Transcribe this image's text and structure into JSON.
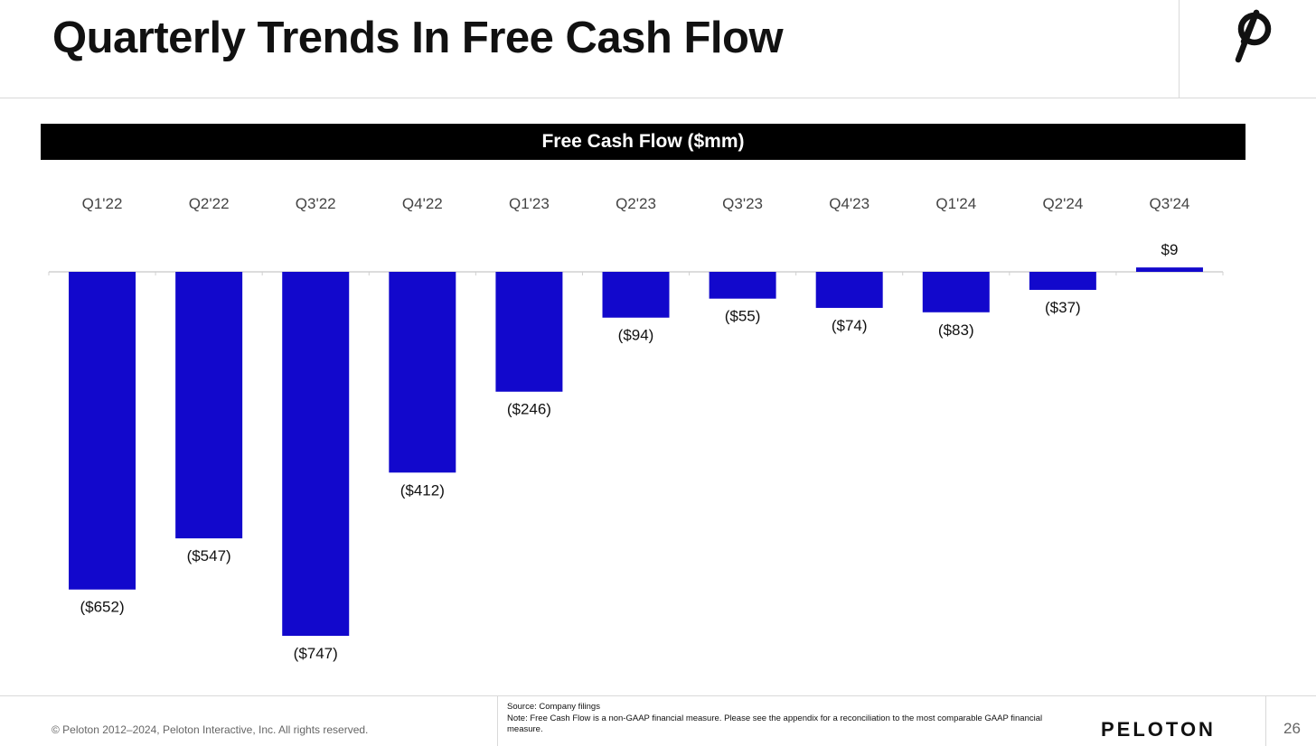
{
  "header": {
    "title": "Quarterly Trends In Free Cash Flow",
    "logo_icon": "peloton-logo-icon"
  },
  "chart_data": {
    "type": "bar",
    "title": "Free Cash Flow ($mm)",
    "categories": [
      "Q1'22",
      "Q2'22",
      "Q3'22",
      "Q4'22",
      "Q1'23",
      "Q2'23",
      "Q3'23",
      "Q4'23",
      "Q1'24",
      "Q2'24",
      "Q3'24"
    ],
    "values": [
      -652,
      -547,
      -747,
      -412,
      -246,
      -94,
      -55,
      -74,
      -83,
      -37,
      9
    ],
    "data_labels": [
      "($652)",
      "($547)",
      "($747)",
      "($412)",
      "($246)",
      "($94)",
      "($55)",
      "($74)",
      "($83)",
      "($37)",
      "$9"
    ],
    "category_labels_position": "top",
    "grid": false,
    "legend": "none",
    "bar_color": "#1208CC",
    "ylim": [
      -750,
      10
    ]
  },
  "footer": {
    "copyright": "© Peloton 2012–2024, Peloton Interactive, Inc. All rights reserved.",
    "source": "Source: Company filings",
    "note": "Note: Free Cash Flow is a non-GAAP financial measure. Please see the appendix for a reconciliation to the most comparable GAAP financial measure.",
    "brand": "PELOTON",
    "page_number": "26"
  }
}
